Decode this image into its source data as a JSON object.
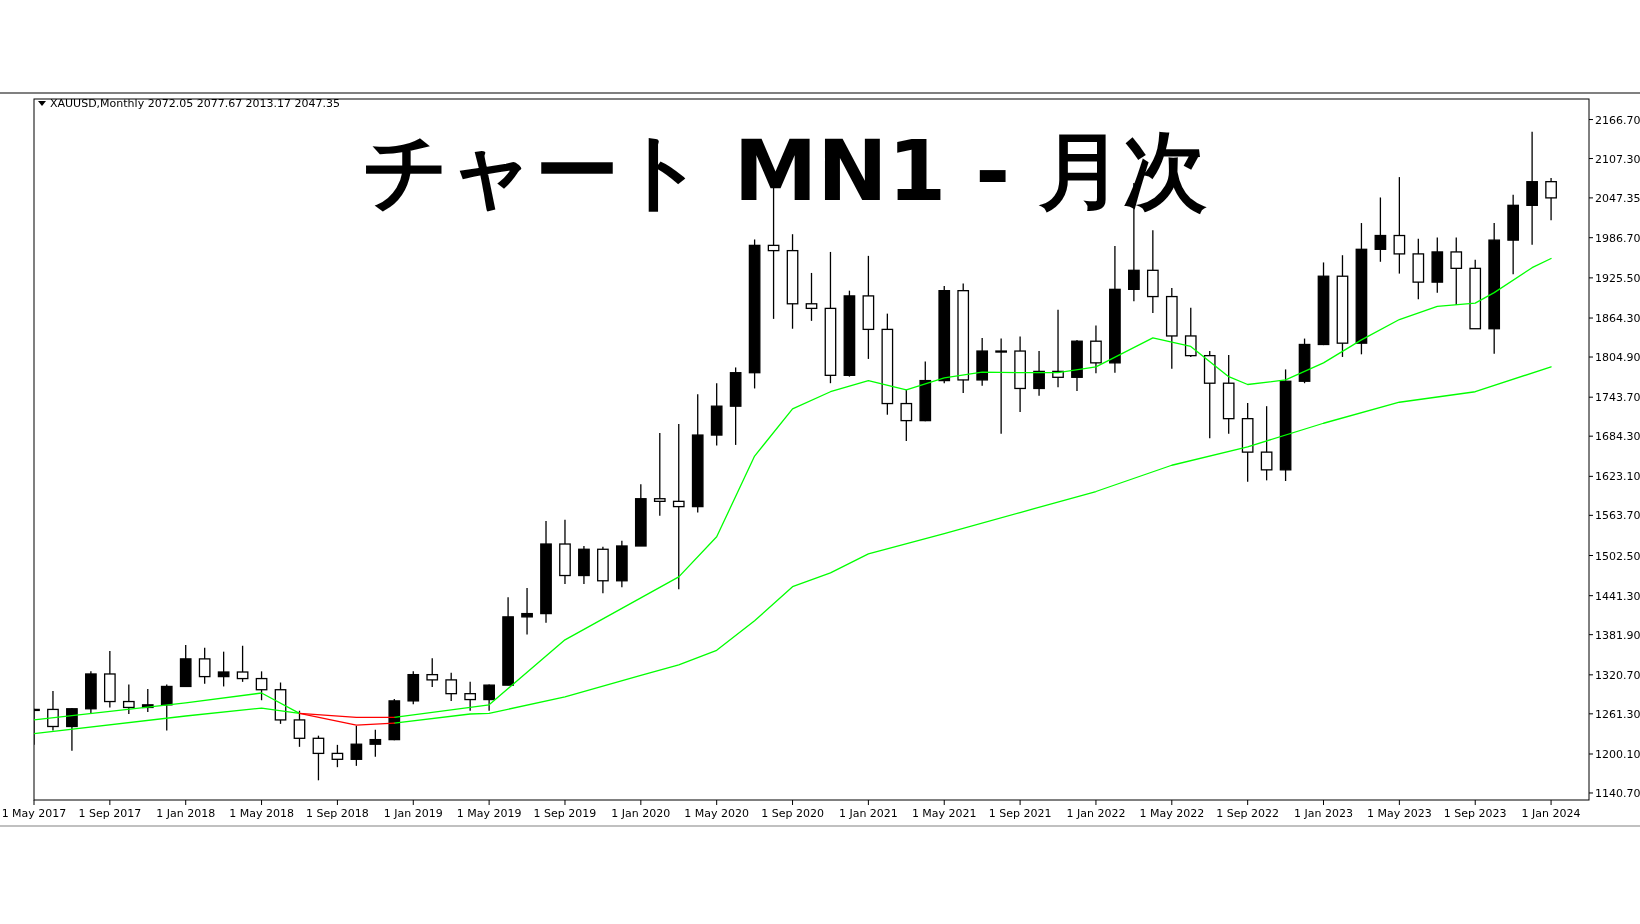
{
  "chart_data": {
    "type": "candlestick",
    "title": "チャート MN1 - 月次",
    "annotations": [
      "XAUUSD,Monthly 2072.05 2077.67 2013.17 2047.35"
    ],
    "x": [
      "2017-05",
      "2017-06",
      "2017-07",
      "2017-08",
      "2017-09",
      "2017-10",
      "2017-11",
      "2017-12",
      "2018-01",
      "2018-02",
      "2018-03",
      "2018-04",
      "2018-05",
      "2018-06",
      "2018-07",
      "2018-08",
      "2018-09",
      "2018-10",
      "2018-11",
      "2018-12",
      "2019-01",
      "2019-02",
      "2019-03",
      "2019-04",
      "2019-05",
      "2019-06",
      "2019-07",
      "2019-08",
      "2019-09",
      "2019-10",
      "2019-11",
      "2019-12",
      "2020-01",
      "2020-02",
      "2020-03",
      "2020-04",
      "2020-05",
      "2020-06",
      "2020-07",
      "2020-08",
      "2020-09",
      "2020-10",
      "2020-11",
      "2020-12",
      "2021-01",
      "2021-02",
      "2021-03",
      "2021-04",
      "2021-05",
      "2021-06",
      "2021-07",
      "2021-08",
      "2021-09",
      "2021-10",
      "2021-11",
      "2021-12",
      "2022-01",
      "2022-02",
      "2022-03",
      "2022-04",
      "2022-05",
      "2022-06",
      "2022-07",
      "2022-08",
      "2022-09",
      "2022-10",
      "2022-11",
      "2022-12",
      "2023-01",
      "2023-02",
      "2023-03",
      "2023-04",
      "2023-05",
      "2023-06",
      "2023-07",
      "2023-08",
      "2023-09",
      "2023-10",
      "2023-11",
      "2023-12",
      "2024-01"
    ],
    "ohlc": [
      [
        1268,
        1269,
        1214,
        1268
      ],
      [
        1268,
        1296,
        1236,
        1242
      ],
      [
        1242,
        1270,
        1205,
        1269
      ],
      [
        1269,
        1326,
        1262,
        1322
      ],
      [
        1322,
        1357,
        1271,
        1280
      ],
      [
        1280,
        1306,
        1261,
        1271
      ],
      [
        1271,
        1299,
        1264,
        1275
      ],
      [
        1275,
        1306,
        1236,
        1303
      ],
      [
        1303,
        1366,
        1302,
        1345
      ],
      [
        1345,
        1362,
        1307,
        1318
      ],
      [
        1318,
        1356,
        1303,
        1325
      ],
      [
        1325,
        1365,
        1310,
        1315
      ],
      [
        1315,
        1326,
        1282,
        1298
      ],
      [
        1298,
        1309,
        1246,
        1252
      ],
      [
        1252,
        1266,
        1211,
        1224
      ],
      [
        1224,
        1228,
        1160,
        1201
      ],
      [
        1201,
        1214,
        1180,
        1192
      ],
      [
        1192,
        1243,
        1182,
        1215
      ],
      [
        1215,
        1237,
        1196,
        1222
      ],
      [
        1222,
        1284,
        1221,
        1281
      ],
      [
        1281,
        1326,
        1276,
        1321
      ],
      [
        1321,
        1346,
        1302,
        1313
      ],
      [
        1313,
        1324,
        1281,
        1292
      ],
      [
        1292,
        1310,
        1266,
        1283
      ],
      [
        1283,
        1306,
        1266,
        1305
      ],
      [
        1305,
        1439,
        1305,
        1409
      ],
      [
        1409,
        1453,
        1382,
        1414
      ],
      [
        1414,
        1555,
        1400,
        1520
      ],
      [
        1520,
        1557,
        1459,
        1472
      ],
      [
        1472,
        1517,
        1459,
        1512
      ],
      [
        1512,
        1516,
        1445,
        1464
      ],
      [
        1464,
        1525,
        1454,
        1517
      ],
      [
        1517,
        1611,
        1517,
        1589
      ],
      [
        1589,
        1689,
        1563,
        1585
      ],
      [
        1585,
        1703,
        1451,
        1577
      ],
      [
        1577,
        1748,
        1568,
        1686
      ],
      [
        1686,
        1765,
        1670,
        1730
      ],
      [
        1730,
        1789,
        1671,
        1781
      ],
      [
        1781,
        1984,
        1757,
        1975
      ],
      [
        1975,
        2075,
        1863,
        1967
      ],
      [
        1967,
        1992,
        1848,
        1886
      ],
      [
        1886,
        1933,
        1860,
        1879
      ],
      [
        1879,
        1965,
        1765,
        1777
      ],
      [
        1777,
        1906,
        1775,
        1898
      ],
      [
        1898,
        1959,
        1802,
        1847
      ],
      [
        1847,
        1871,
        1717,
        1734
      ],
      [
        1734,
        1755,
        1677,
        1708
      ],
      [
        1708,
        1798,
        1707,
        1769
      ],
      [
        1769,
        1913,
        1765,
        1906
      ],
      [
        1906,
        1917,
        1750,
        1770
      ],
      [
        1770,
        1834,
        1761,
        1814
      ],
      [
        1814,
        1833,
        1688,
        1814
      ],
      [
        1814,
        1836,
        1721,
        1757
      ],
      [
        1757,
        1814,
        1746,
        1783
      ],
      [
        1783,
        1877,
        1759,
        1774
      ],
      [
        1774,
        1831,
        1753,
        1829
      ],
      [
        1829,
        1853,
        1780,
        1796
      ],
      [
        1796,
        1974,
        1781,
        1908
      ],
      [
        1908,
        2070,
        1890,
        1937
      ],
      [
        1937,
        1998,
        1872,
        1897
      ],
      [
        1897,
        1910,
        1787,
        1837
      ],
      [
        1837,
        1880,
        1805,
        1807
      ],
      [
        1807,
        1814,
        1681,
        1765
      ],
      [
        1765,
        1808,
        1688,
        1711
      ],
      [
        1711,
        1735,
        1615,
        1660
      ],
      [
        1660,
        1730,
        1617,
        1633
      ],
      [
        1633,
        1786,
        1616,
        1768
      ],
      [
        1768,
        1833,
        1765,
        1824
      ],
      [
        1824,
        1949,
        1823,
        1928
      ],
      [
        1928,
        1960,
        1805,
        1826
      ],
      [
        1826,
        2009,
        1809,
        1969
      ],
      [
        1969,
        2048,
        1950,
        1990
      ],
      [
        1990,
        2079,
        1932,
        1962
      ],
      [
        1962,
        1985,
        1893,
        1919
      ],
      [
        1919,
        1987,
        1903,
        1965
      ],
      [
        1965,
        1987,
        1884,
        1940
      ],
      [
        1940,
        1953,
        1848,
        1848
      ],
      [
        1848,
        2009,
        1810,
        1983
      ],
      [
        1983,
        2052,
        1931,
        2036
      ],
      [
        2036,
        2148,
        1976,
        2072
      ],
      [
        2072.05,
        2077.67,
        2013.17,
        2047.35
      ]
    ],
    "series": [
      {
        "type": "line",
        "color": "#00ff00",
        "x": [
          "2017-05",
          "2018-01",
          "2018-05",
          "2018-07"
        ],
        "values": [
          1252,
          1278,
          1293,
          1262
        ]
      },
      {
        "type": "line",
        "color": "#00ff00",
        "x": [
          "2018-12",
          "2019-04",
          "2019-05",
          "2019-09",
          "2020-01",
          "2020-03",
          "2020-05",
          "2020-07",
          "2020-09",
          "2020-11",
          "2021-01",
          "2021-03",
          "2021-05",
          "2021-07",
          "2021-09",
          "2021-11",
          "2022-01",
          "2022-04",
          "2022-06",
          "2022-08",
          "2022-09",
          "2022-11",
          "2023-01",
          "2023-03",
          "2023-05",
          "2023-07",
          "2023-09",
          "2023-10",
          "2023-12",
          "2024-01"
        ],
        "values": [
          1256,
          1271,
          1275,
          1374,
          1438,
          1470,
          1531,
          1654,
          1726,
          1752,
          1769,
          1755,
          1773,
          1782,
          1781,
          1781,
          1790,
          1834,
          1821,
          1775,
          1763,
          1770,
          1796,
          1831,
          1862,
          1882,
          1887,
          1903,
          1941,
          1955
        ]
      },
      {
        "type": "line",
        "color": "#00ff00",
        "x": [
          "2017-05",
          "2018-01",
          "2018-05",
          "2018-07"
        ],
        "values": [
          1231,
          1258,
          1270,
          1262
        ]
      },
      {
        "type": "line",
        "color": "#00ff00",
        "x": [
          "2018-12",
          "2019-04",
          "2019-05",
          "2019-09",
          "2020-01",
          "2020-03",
          "2020-05",
          "2020-07",
          "2020-09",
          "2020-11",
          "2021-01",
          "2021-05",
          "2021-09",
          "2022-01",
          "2022-05",
          "2022-09",
          "2023-01",
          "2023-05",
          "2023-09",
          "2024-01"
        ],
        "values": [
          1247,
          1261,
          1262,
          1287,
          1320,
          1336,
          1358,
          1403,
          1455,
          1476,
          1505,
          1536,
          1568,
          1600,
          1640,
          1668,
          1704,
          1736,
          1752,
          1790
        ]
      },
      {
        "type": "line",
        "color": "#ff0000",
        "x": [
          "2018-07",
          "2018-10",
          "2018-12"
        ],
        "values": [
          1262,
          1256,
          1256
        ]
      },
      {
        "type": "line",
        "color": "#ff0000",
        "x": [
          "2018-07",
          "2018-10",
          "2018-12"
        ],
        "values": [
          1262,
          1244,
          1247
        ]
      }
    ],
    "xlim": [
      "2017-05",
      "2024-03"
    ],
    "xticks": [
      {
        "value": "2017-05",
        "label": "1 May 2017"
      },
      {
        "value": "2017-09",
        "label": "1 Sep 2017"
      },
      {
        "value": "2018-01",
        "label": "1 Jan 2018"
      },
      {
        "value": "2018-05",
        "label": "1 May 2018"
      },
      {
        "value": "2018-09",
        "label": "1 Sep 2018"
      },
      {
        "value": "2019-01",
        "label": "1 Jan 2019"
      },
      {
        "value": "2019-05",
        "label": "1 May 2019"
      },
      {
        "value": "2019-09",
        "label": "1 Sep 2019"
      },
      {
        "value": "2020-01",
        "label": "1 Jan 2020"
      },
      {
        "value": "2020-05",
        "label": "1 May 2020"
      },
      {
        "value": "2020-09",
        "label": "1 Sep 2020"
      },
      {
        "value": "2021-01",
        "label": "1 Jan 2021"
      },
      {
        "value": "2021-05",
        "label": "1 May 2021"
      },
      {
        "value": "2021-09",
        "label": "1 Sep 2021"
      },
      {
        "value": "2022-01",
        "label": "1 Jan 2022"
      },
      {
        "value": "2022-05",
        "label": "1 May 2022"
      },
      {
        "value": "2022-09",
        "label": "1 Sep 2022"
      },
      {
        "value": "2023-01",
        "label": "1 Jan 2023"
      },
      {
        "value": "2023-05",
        "label": "1 May 2023"
      },
      {
        "value": "2023-09",
        "label": "1 Sep 2023"
      },
      {
        "value": "2024-01",
        "label": "1 Jan 2024"
      }
    ],
    "ylim": [
      1130,
      2198
    ],
    "yticks": [
      {
        "value": 2166.7,
        "label": "2166.70"
      },
      {
        "value": 2107.3,
        "label": "2107.30"
      },
      {
        "value": 2047.35,
        "label": "2047.35"
      },
      {
        "value": 1986.7,
        "label": "1986.70"
      },
      {
        "value": 1925.5,
        "label": "1925.50"
      },
      {
        "value": 1864.3,
        "label": "1864.30"
      },
      {
        "value": 1804.9,
        "label": "1804.90"
      },
      {
        "value": 1743.7,
        "label": "1743.70"
      },
      {
        "value": 1684.3,
        "label": "1684.30"
      },
      {
        "value": 1623.1,
        "label": "1623.10"
      },
      {
        "value": 1563.7,
        "label": "1563.70"
      },
      {
        "value": 1502.5,
        "label": "1502.50"
      },
      {
        "value": 1441.3,
        "label": "1441.30"
      },
      {
        "value": 1381.9,
        "label": "1381.90"
      },
      {
        "value": 1320.7,
        "label": "1320.70"
      },
      {
        "value": 1261.3,
        "label": "1261.30"
      },
      {
        "value": 1200.1,
        "label": "1200.10"
      },
      {
        "value": 1140.7,
        "label": "1140.70"
      }
    ],
    "grid": false
  }
}
